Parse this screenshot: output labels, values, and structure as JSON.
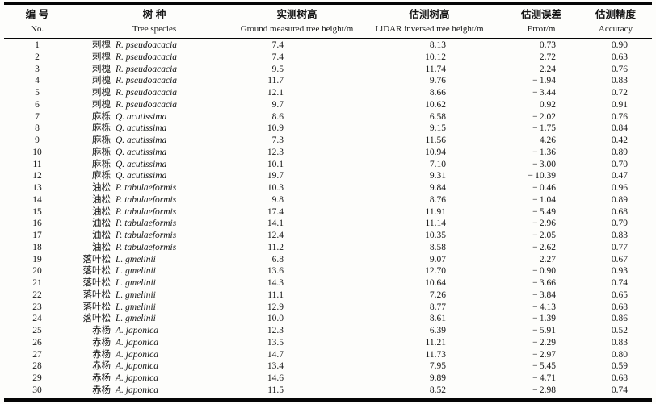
{
  "colors": {
    "background": "#fdfdfb",
    "text": "#161616",
    "rule": "#050505"
  },
  "table": {
    "headers": [
      {
        "zh": "编号",
        "en": "No."
      },
      {
        "zh": "树种",
        "en": "Tree species"
      },
      {
        "zh": "实测树高",
        "en": "Ground measured tree height/m"
      },
      {
        "zh": "估测树高",
        "en": "LiDAR inversed tree height/m"
      },
      {
        "zh": "估测误差",
        "en": "Error/m"
      },
      {
        "zh": "估测精度",
        "en": "Accuracy"
      }
    ],
    "rows": [
      {
        "no": "1",
        "species_zh": "刺槐",
        "species_latin": "R. pseudoacacia",
        "measured": "7.4",
        "lidar": "8.13",
        "error": "0.73",
        "accuracy": "0.90"
      },
      {
        "no": "2",
        "species_zh": "刺槐",
        "species_latin": "R. pseudoacacia",
        "measured": "7.4",
        "lidar": "10.12",
        "error": "2.72",
        "accuracy": "0.63"
      },
      {
        "no": "3",
        "species_zh": "刺槐",
        "species_latin": "R. pseudoacacia",
        "measured": "9.5",
        "lidar": "11.74",
        "error": "2.24",
        "accuracy": "0.76"
      },
      {
        "no": "4",
        "species_zh": "刺槐",
        "species_latin": "R. pseudoacacia",
        "measured": "11.7",
        "lidar": "9.76",
        "error": "-1.94",
        "accuracy": "0.83"
      },
      {
        "no": "5",
        "species_zh": "刺槐",
        "species_latin": "R. pseudoacacia",
        "measured": "12.1",
        "lidar": "8.66",
        "error": "-3.44",
        "accuracy": "0.72"
      },
      {
        "no": "6",
        "species_zh": "刺槐",
        "species_latin": "R. pseudoacacia",
        "measured": "9.7",
        "lidar": "10.62",
        "error": "0.92",
        "accuracy": "0.91"
      },
      {
        "no": "7",
        "species_zh": "麻栎",
        "species_latin": "Q. acutissima",
        "measured": "8.6",
        "lidar": "6.58",
        "error": "-2.02",
        "accuracy": "0.76"
      },
      {
        "no": "8",
        "species_zh": "麻栎",
        "species_latin": "Q. acutissima",
        "measured": "10.9",
        "lidar": "9.15",
        "error": "-1.75",
        "accuracy": "0.84"
      },
      {
        "no": "9",
        "species_zh": "麻栎",
        "species_latin": "Q. acutissima",
        "measured": "7.3",
        "lidar": "11.56",
        "error": "4.26",
        "accuracy": "0.42"
      },
      {
        "no": "10",
        "species_zh": "麻栎",
        "species_latin": "Q. acutissima",
        "measured": "12.3",
        "lidar": "10.94",
        "error": "-1.36",
        "accuracy": "0.89"
      },
      {
        "no": "11",
        "species_zh": "麻栎",
        "species_latin": "Q. acutissima",
        "measured": "10.1",
        "lidar": "7.10",
        "error": "-3.00",
        "accuracy": "0.70"
      },
      {
        "no": "12",
        "species_zh": "麻栎",
        "species_latin": "Q. acutissima",
        "measured": "19.7",
        "lidar": "9.31",
        "error": "-10.39",
        "accuracy": "0.47"
      },
      {
        "no": "13",
        "species_zh": "油松",
        "species_latin": "P. tabulaeformis",
        "measured": "10.3",
        "lidar": "9.84",
        "error": "-0.46",
        "accuracy": "0.96"
      },
      {
        "no": "14",
        "species_zh": "油松",
        "species_latin": "P. tabulaeformis",
        "measured": "9.8",
        "lidar": "8.76",
        "error": "-1.04",
        "accuracy": "0.89"
      },
      {
        "no": "15",
        "species_zh": "油松",
        "species_latin": "P. tabulaeformis",
        "measured": "17.4",
        "lidar": "11.91",
        "error": "-5.49",
        "accuracy": "0.68"
      },
      {
        "no": "16",
        "species_zh": "油松",
        "species_latin": "P. tabulaeformis",
        "measured": "14.1",
        "lidar": "11.14",
        "error": "-2.96",
        "accuracy": "0.79"
      },
      {
        "no": "17",
        "species_zh": "油松",
        "species_latin": "P. tabulaeformis",
        "measured": "12.4",
        "lidar": "10.35",
        "error": "-2.05",
        "accuracy": "0.83"
      },
      {
        "no": "18",
        "species_zh": "油松",
        "species_latin": "P. tabulaeformis",
        "measured": "11.2",
        "lidar": "8.58",
        "error": "-2.62",
        "accuracy": "0.77"
      },
      {
        "no": "19",
        "species_zh": "落叶松",
        "species_latin": "L. gmelinii",
        "measured": "6.8",
        "lidar": "9.07",
        "error": "2.27",
        "accuracy": "0.67"
      },
      {
        "no": "20",
        "species_zh": "落叶松",
        "species_latin": "L. gmelinii",
        "measured": "13.6",
        "lidar": "12.70",
        "error": "-0.90",
        "accuracy": "0.93"
      },
      {
        "no": "21",
        "species_zh": "落叶松",
        "species_latin": "L. gmelinii",
        "measured": "14.3",
        "lidar": "10.64",
        "error": "-3.66",
        "accuracy": "0.74"
      },
      {
        "no": "22",
        "species_zh": "落叶松",
        "species_latin": "L. gmelinii",
        "measured": "11.1",
        "lidar": "7.26",
        "error": "-3.84",
        "accuracy": "0.65"
      },
      {
        "no": "23",
        "species_zh": "落叶松",
        "species_latin": "L. gmelinii",
        "measured": "12.9",
        "lidar": "8.77",
        "error": "-4.13",
        "accuracy": "0.68"
      },
      {
        "no": "24",
        "species_zh": "落叶松",
        "species_latin": "L. gmelinii",
        "measured": "10.0",
        "lidar": "8.61",
        "error": "-1.39",
        "accuracy": "0.86"
      },
      {
        "no": "25",
        "species_zh": "赤杨",
        "species_latin": "A. japonica",
        "measured": "12.3",
        "lidar": "6.39",
        "error": "-5.91",
        "accuracy": "0.52"
      },
      {
        "no": "26",
        "species_zh": "赤杨",
        "species_latin": "A. japonica",
        "measured": "13.5",
        "lidar": "11.21",
        "error": "-2.29",
        "accuracy": "0.83"
      },
      {
        "no": "27",
        "species_zh": "赤杨",
        "species_latin": "A. japonica",
        "measured": "14.7",
        "lidar": "11.73",
        "error": "-2.97",
        "accuracy": "0.80"
      },
      {
        "no": "28",
        "species_zh": "赤杨",
        "species_latin": "A. japonica",
        "measured": "13.4",
        "lidar": "7.95",
        "error": "-5.45",
        "accuracy": "0.59"
      },
      {
        "no": "29",
        "species_zh": "赤杨",
        "species_latin": "A. japonica",
        "measured": "14.6",
        "lidar": "9.89",
        "error": "-4.71",
        "accuracy": "0.68"
      },
      {
        "no": "30",
        "species_zh": "赤杨",
        "species_latin": "A. japonica",
        "measured": "11.5",
        "lidar": "8.52",
        "error": "-2.98",
        "accuracy": "0.74"
      }
    ]
  }
}
